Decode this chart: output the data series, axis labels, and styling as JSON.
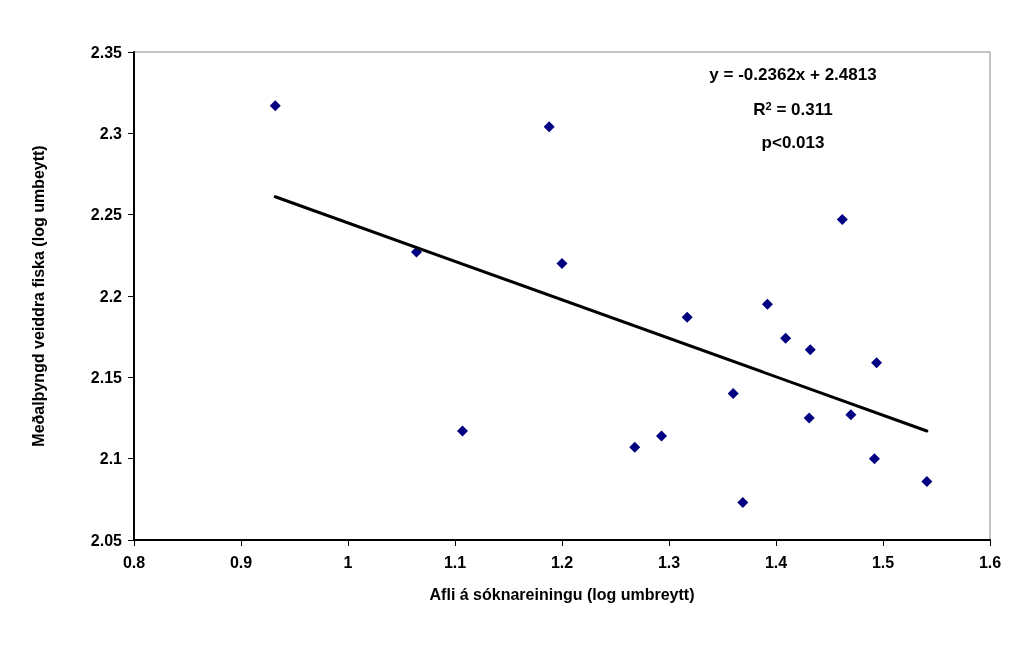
{
  "chart_data": {
    "type": "scatter",
    "xlabel": "Afli á sóknareiningu (log umbreytt)",
    "ylabel": "Meðalþyngd veiddra fiska (log umbeytt)",
    "xlim": [
      0.8,
      1.6
    ],
    "xticks": [
      0.8,
      0.9,
      1,
      1.1,
      1.2,
      1.3,
      1.4,
      1.5,
      1.6
    ],
    "ylim": [
      2.05,
      2.35
    ],
    "yticks": [
      2.05,
      2.1,
      2.15,
      2.2,
      2.25,
      2.3,
      2.35
    ],
    "grid": false,
    "annotations": [
      "y = -0.2362x + 2.4813",
      "R$^{2}$ = 0.311",
      "p<0.013"
    ],
    "series": [
      {
        "marker": "diamond",
        "color": "#000080",
        "x": [
          0.932,
          1.064,
          1.107,
          1.188,
          1.2,
          1.268,
          1.293,
          1.317,
          1.36,
          1.369,
          1.392,
          1.409,
          1.431,
          1.432,
          1.462,
          1.47,
          1.492,
          1.494,
          1.541
        ],
        "values": [
          2.317,
          2.227,
          2.117,
          2.304,
          2.22,
          2.107,
          2.114,
          2.187,
          2.14,
          2.073,
          2.195,
          2.174,
          2.125,
          2.167,
          2.247,
          2.127,
          2.1,
          2.159,
          2.086
        ]
      },
      {
        "type": "line",
        "marker": "none",
        "color": "#000000",
        "x": [
          0.932,
          1.541
        ],
        "values": [
          2.261,
          2.117
        ]
      }
    ]
  }
}
